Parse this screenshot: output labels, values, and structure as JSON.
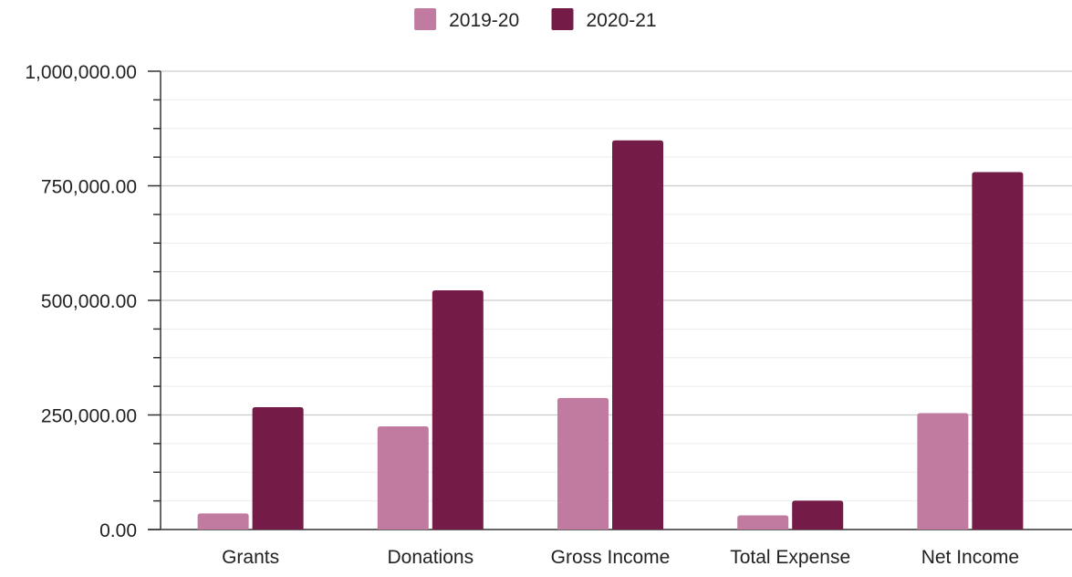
{
  "chart_data": {
    "type": "bar",
    "title": "",
    "xlabel": "",
    "ylabel": "",
    "categories": [
      "Grants",
      "Donations",
      "Gross Income",
      "Total Expense",
      "Net Income"
    ],
    "series": [
      {
        "name": "2019-20",
        "color": "#c27ba0",
        "values": [
          35000,
          225000,
          287000,
          31000,
          254000
        ]
      },
      {
        "name": "2020-21",
        "color": "#741b47",
        "values": [
          267000,
          522000,
          849000,
          63000,
          780000
        ]
      }
    ],
    "ylim": [
      0,
      1000000
    ],
    "yticks": [
      0,
      250000,
      500000,
      750000,
      1000000
    ],
    "ytick_labels": [
      "0.00",
      "250,000.00",
      "500,000.00",
      "750,000.00",
      "1,000,000.00"
    ],
    "minor_gridlines_per_major": 3,
    "grid": true,
    "legend": "top-center"
  }
}
